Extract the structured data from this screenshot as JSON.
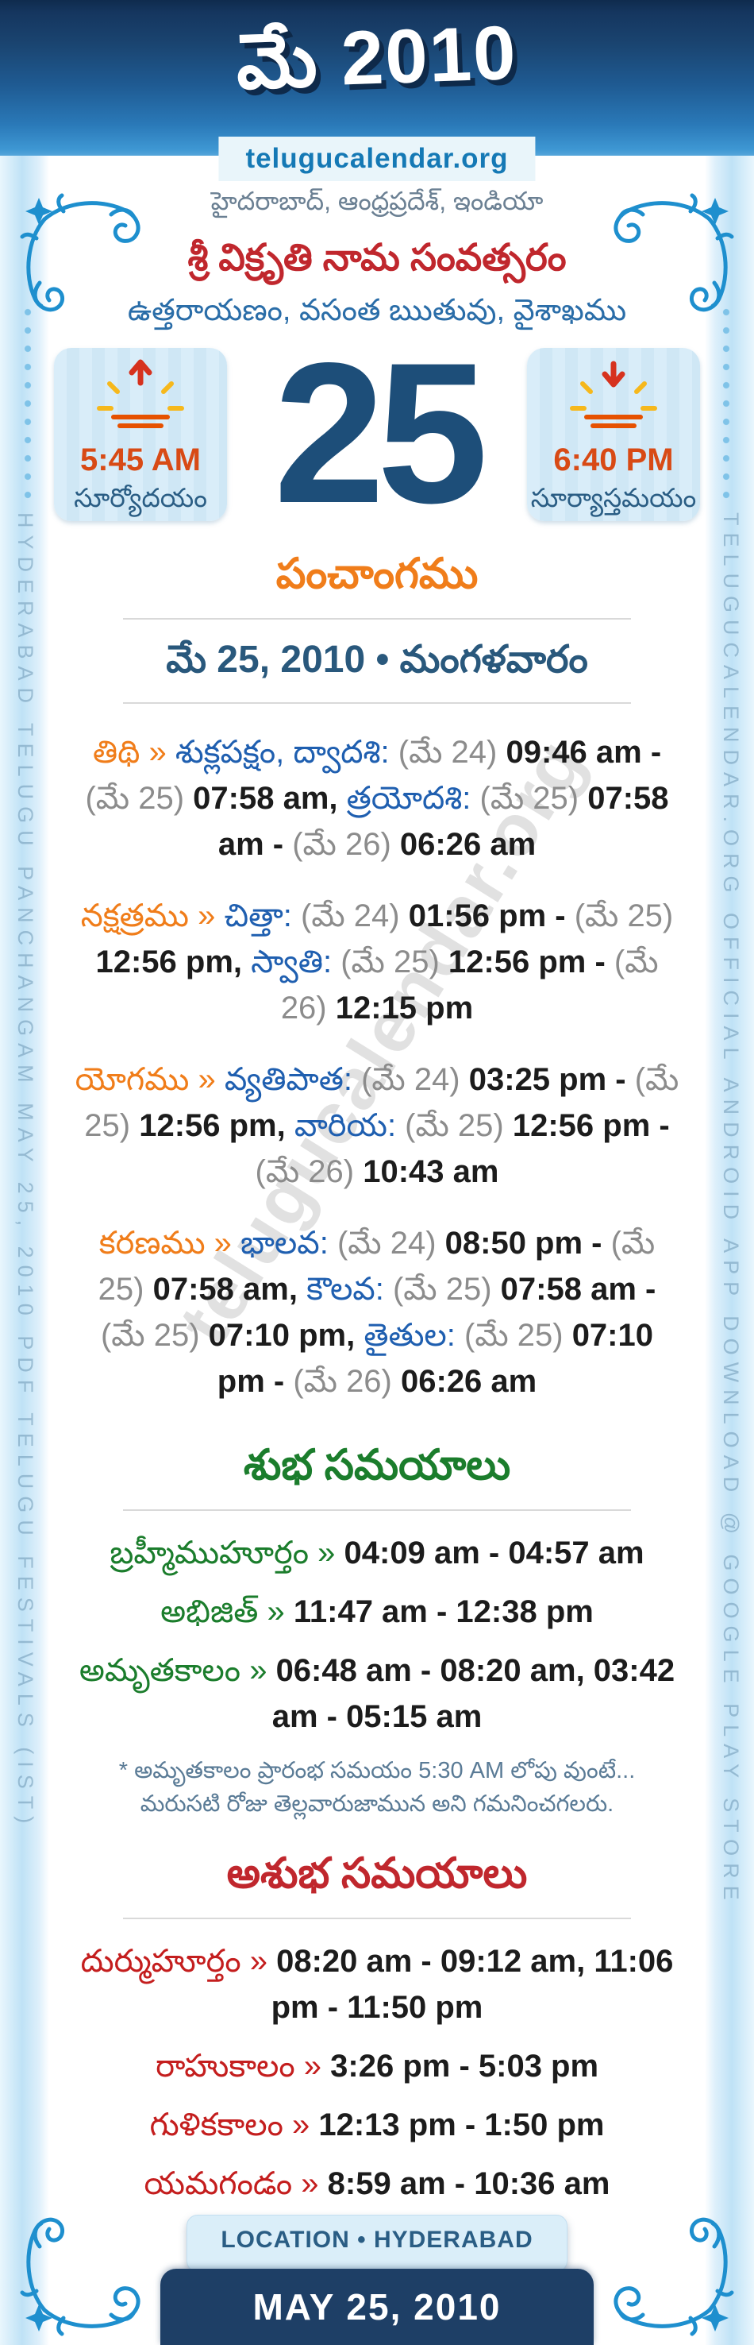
{
  "header": {
    "title": "మే 2010",
    "badge": "telugucalendar.org"
  },
  "intro": {
    "geo_line": "హైదరాబాద్, ఆంధ్రప్రదేశ్, ఇండియా",
    "year_line": "శ్రీ విక్రృతి నామ సంవత్సరం",
    "season_line": "ఉత్తరాయణం, వసంత ఋతువు, వైశాఖము"
  },
  "day": {
    "number": "25",
    "sunrise": {
      "time": "5:45 AM",
      "label": "సూర్యోదయం",
      "icon": "sunrise-icon"
    },
    "sunset": {
      "time": "6:40 PM",
      "label": "సూర్యాస్తమయం",
      "icon": "sunset-icon"
    }
  },
  "panchangam": {
    "heading": "పంచాంగము",
    "date_line": "మే 25, 2010 • మంగళవారం",
    "rows": [
      {
        "segments": [
          [
            "తిథి » ",
            "l"
          ],
          [
            "శుక్లపక్షం, ద్వాదశి: ",
            "n"
          ],
          [
            "(మే 24) ",
            "d"
          ],
          [
            "09:46 am - ",
            "t"
          ],
          [
            "(మే 25) ",
            "d"
          ],
          [
            "07:58 am, ",
            "t"
          ],
          [
            "త్రయోదశి: ",
            "n"
          ],
          [
            "(మే 25) ",
            "d"
          ],
          [
            "07:58 am - ",
            "t"
          ],
          [
            "(మే 26) ",
            "d"
          ],
          [
            "06:26 am",
            "t"
          ]
        ]
      },
      {
        "segments": [
          [
            "నక్షత్రము » ",
            "l"
          ],
          [
            "చిత్తా: ",
            "n"
          ],
          [
            "(మే 24) ",
            "d"
          ],
          [
            "01:56 pm - ",
            "t"
          ],
          [
            "(మే 25) ",
            "d"
          ],
          [
            "12:56 pm, ",
            "t"
          ],
          [
            "స్వాతి: ",
            "n"
          ],
          [
            "(మే 25) ",
            "d"
          ],
          [
            "12:56 pm - ",
            "t"
          ],
          [
            "(మే 26) ",
            "d"
          ],
          [
            "12:15 pm",
            "t"
          ]
        ]
      },
      {
        "segments": [
          [
            "యోగము » ",
            "l"
          ],
          [
            "వ్యతిపాత: ",
            "n"
          ],
          [
            "(మే 24) ",
            "d"
          ],
          [
            "03:25 pm - ",
            "t"
          ],
          [
            "(మే 25) ",
            "d"
          ],
          [
            "12:56 pm, ",
            "t"
          ],
          [
            "వారియ: ",
            "n"
          ],
          [
            "(మే 25) ",
            "d"
          ],
          [
            "12:56 pm - ",
            "t"
          ],
          [
            "(మే 26) ",
            "d"
          ],
          [
            "10:43 am",
            "t"
          ]
        ]
      },
      {
        "segments": [
          [
            "కరణము » ",
            "l"
          ],
          [
            "భాలవ: ",
            "n"
          ],
          [
            "(మే 24) ",
            "d"
          ],
          [
            "08:50 pm - ",
            "t"
          ],
          [
            "(మే 25) ",
            "d"
          ],
          [
            "07:58 am, ",
            "t"
          ],
          [
            "కౌలవ: ",
            "n"
          ],
          [
            "(మే 25) ",
            "d"
          ],
          [
            "07:58 am - ",
            "t"
          ],
          [
            "(మే 25) ",
            "d"
          ],
          [
            "07:10 pm, ",
            "t"
          ],
          [
            "తైతుల: ",
            "n"
          ],
          [
            "(మే 25) ",
            "d"
          ],
          [
            "07:10 pm - ",
            "t"
          ],
          [
            "(మే 26) ",
            "d"
          ],
          [
            "06:26 am",
            "t"
          ]
        ]
      }
    ]
  },
  "subha": {
    "heading": "శుభ సమయాలు",
    "items": [
      {
        "label": "బ్రహ్మీముహూర్తం",
        "times": "04:09 am - 04:57 am"
      },
      {
        "label": "అభిజిత్",
        "times": "11:47 am - 12:38 pm"
      },
      {
        "label": "అమృతకాలం",
        "times": "06:48 am - 08:20 am, 03:42 am - 05:15 am"
      }
    ],
    "note": "* అమృతకాలం ప్రారంభ సమయం 5:30 AM లోపు వుంటే... మరుసటి రోజు తెల్లవారుజామున అని గమనించగలరు."
  },
  "asubha": {
    "heading": "అశుభ సమయాలు",
    "items": [
      {
        "label": "దుర్ముహూర్తం",
        "times": "08:20 am - 09:12 am, 11:06 pm - 11:50 pm"
      },
      {
        "label": "రాహుకాలం",
        "times": "3:26 pm - 5:03 pm"
      },
      {
        "label": "గుళికకాలం",
        "times": "12:13 pm - 1:50 pm"
      },
      {
        "label": "యమగండం",
        "times": "8:59 am - 10:36 am"
      }
    ]
  },
  "footer": {
    "location": "LOCATION • HYDERABAD",
    "date": "MAY 25, 2010"
  },
  "side_text": {
    "left": "HYDERABAD TELUGU PANCHANGAM MAY 25, 2010 PDF TELUGU FESTIVALS (IST)",
    "right": "TELUGUCALENDAR.ORG OFFICIAL ANDROID APP DOWNLOAD @ GOOGLE PLAY STORE"
  },
  "watermark": "telugucalendar.org",
  "colors": {
    "header_navy": "#1e3f66",
    "accent_orange": "#f07d1a",
    "name_blue": "#1f5fb0",
    "paren_gray": "#8c8c8c",
    "good_green": "#1b7d2c",
    "bad_red": "#c0272d",
    "day_navy": "#1d4e79",
    "sun_time_red": "#d84a15",
    "ornament_blue": "#1e8fce"
  }
}
